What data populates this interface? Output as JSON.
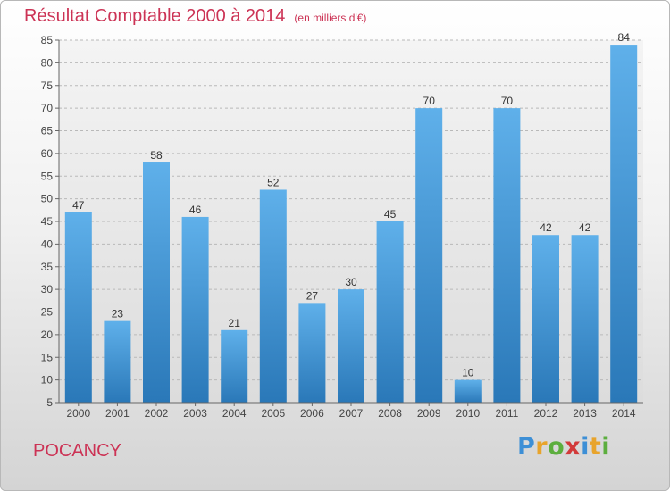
{
  "chart_data": {
    "type": "bar",
    "title": "Résultat Comptable 2000 à 2014",
    "unit": "(en milliers d'€)",
    "categories": [
      "2000",
      "2001",
      "2002",
      "2003",
      "2004",
      "2005",
      "2006",
      "2007",
      "2008",
      "2009",
      "2010",
      "2011",
      "2012",
      "2013",
      "2014"
    ],
    "values": [
      47,
      23,
      58,
      46,
      21,
      52,
      27,
      30,
      45,
      70,
      10,
      70,
      42,
      42,
      84
    ],
    "ylim": [
      5,
      85
    ],
    "yticks": [
      5,
      10,
      15,
      20,
      25,
      30,
      35,
      40,
      45,
      50,
      55,
      60,
      65,
      70,
      75,
      80,
      85
    ],
    "grid": true,
    "bar_color": "#4f9fdc"
  },
  "place_name": "POCANCY",
  "logo": {
    "letters": [
      "P",
      "r",
      "o",
      "x",
      "i",
      "t",
      "i"
    ]
  }
}
